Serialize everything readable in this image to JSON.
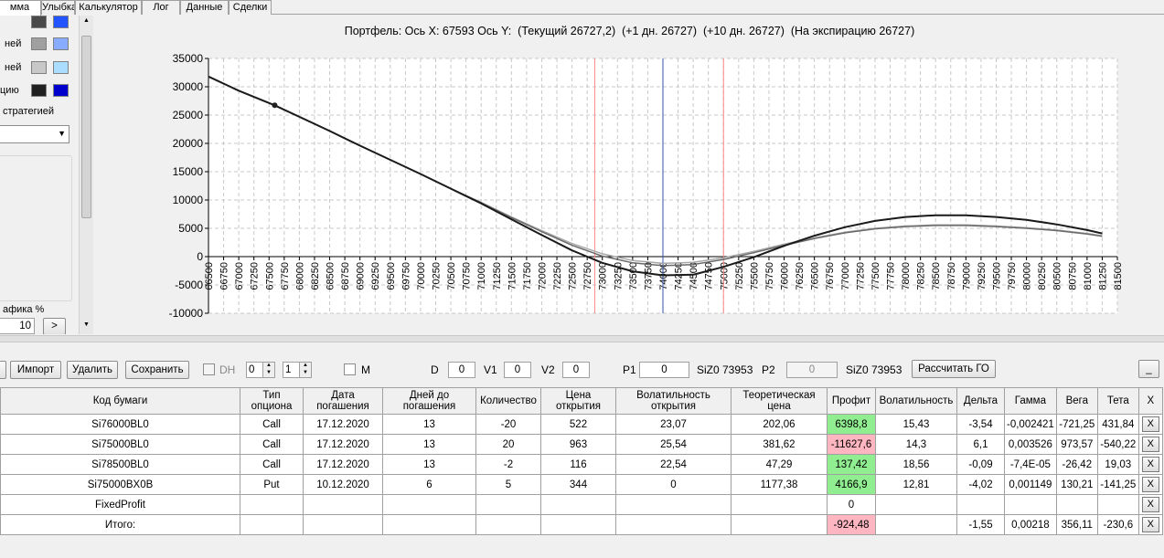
{
  "tabs": [
    {
      "label": "мма",
      "active": true
    },
    {
      "label": "Улыбка"
    },
    {
      "label": "Калькулятор"
    },
    {
      "label": "Лог"
    },
    {
      "label": "Данные"
    },
    {
      "label": "Сделки"
    }
  ],
  "left_panel": {
    "rows": [
      {
        "label": "",
        "swatch_a": "#4a4a4a",
        "swatch_b": "#2255ff"
      },
      {
        "label": "ней",
        "swatch_a": "#a0a0a0",
        "swatch_b": "#88aaff"
      },
      {
        "label": "ней",
        "swatch_a": "#c8c8c8",
        "swatch_b": "#aaddff"
      },
      {
        "label": "цию",
        "swatch_a": "#202020",
        "swatch_b": "#0000cc"
      }
    ],
    "strategy_label": "стратегией",
    "dropdown_value": "",
    "section_label": "афика %",
    "number_value": "10",
    "number_button": ">"
  },
  "chart_title": "Портфель: Ось X: 67593 Ось Y:  (Текущий 26727,2)  (+1 дн. 26727)  (+10 дн. 26727)  (На экспирацию 26727)",
  "chart_data": {
    "type": "line",
    "title": "Портфель: Ось X: 67593 Ось Y:  (Текущий 26727,2)  (+1 дн. 26727)  (+10 дн. 26727)  (На экспирацию 26727)",
    "xlim": [
      66500,
      81500
    ],
    "ylim": [
      -10000,
      35000
    ],
    "x_tick_step": 250,
    "y_ticks": [
      35000,
      30000,
      25000,
      20000,
      15000,
      10000,
      5000,
      0,
      -5000,
      -10000
    ],
    "grid": true,
    "marker": {
      "x": 67593,
      "y": 26727
    },
    "vlines": [
      {
        "x": 72875,
        "color": "#ff8888"
      },
      {
        "x": 74000,
        "color": "#3355aa"
      },
      {
        "x": 75000,
        "color": "#ff8888"
      }
    ],
    "series": [
      {
        "color": "#a8a8a8",
        "width": 1.5,
        "x": [
          66500,
          67000,
          67593,
          68000,
          68500,
          69000,
          69500,
          70000,
          70500,
          71000,
          71500,
          72000,
          72500,
          73000,
          73500,
          74000,
          74500,
          75000,
          75500,
          76000,
          76500,
          77000,
          77500,
          78000,
          78500,
          79000,
          79500,
          80000,
          80500,
          81000,
          81250
        ],
        "y": [
          31800,
          29300,
          26727,
          24700,
          22200,
          19600,
          17100,
          14600,
          12000,
          9600,
          7000,
          4600,
          2300,
          500,
          -700,
          -1200,
          -1000,
          -200,
          900,
          2200,
          3300,
          4300,
          5000,
          5400,
          5600,
          5600,
          5400,
          5100,
          4700,
          4100,
          3700
        ]
      },
      {
        "color": "#6a6a6a",
        "width": 1.5,
        "x": [
          66500,
          67000,
          67593,
          68000,
          68500,
          69000,
          69500,
          70000,
          70500,
          71000,
          71500,
          72000,
          72500,
          73000,
          73500,
          74000,
          74500,
          75000,
          75500,
          76000,
          76500,
          77000,
          77500,
          78000,
          78500,
          79000,
          79500,
          80000,
          80500,
          81000,
          81250
        ],
        "y": [
          31800,
          29300,
          26727,
          24700,
          22200,
          19600,
          17100,
          14600,
          12000,
          9500,
          6900,
          4400,
          2000,
          100,
          -1100,
          -1600,
          -1400,
          -500,
          700,
          2000,
          3200,
          4200,
          4900,
          5300,
          5500,
          5500,
          5300,
          5000,
          4600,
          4000,
          3600
        ]
      },
      {
        "color": "#1a1a1a",
        "width": 2,
        "x": [
          66500,
          67000,
          67593,
          68000,
          68500,
          69000,
          69500,
          70000,
          70500,
          71000,
          71500,
          72000,
          72500,
          73000,
          73500,
          74000,
          74500,
          75000,
          75500,
          76000,
          76500,
          77000,
          77500,
          78000,
          78500,
          79000,
          79500,
          80000,
          80500,
          81000,
          81250
        ],
        "y": [
          31800,
          29300,
          26727,
          24700,
          22200,
          19600,
          17100,
          14600,
          12000,
          9400,
          6600,
          3800,
          1100,
          -1100,
          -2600,
          -3300,
          -3200,
          -1800,
          -100,
          1900,
          3700,
          5200,
          6300,
          7000,
          7300,
          7300,
          7000,
          6500,
          5700,
          4700,
          4100
        ]
      }
    ]
  },
  "toolbar": {
    "import": "Импорт",
    "delete": "Удалить",
    "save": "Сохранить",
    "dh_label": "DH",
    "spin1": "0",
    "spin2": "1",
    "m_label": "M",
    "d_label": "D",
    "d_value": "0",
    "v1_label": "V1",
    "v1_value": "0",
    "v2_label": "V2",
    "v2_value": "0",
    "p1_label": "P1",
    "p1_value": "0",
    "p1_suffix": "SiZ0 73953",
    "p2_label": "P2",
    "p2_value": "0",
    "p2_suffix": "SiZ0 73953",
    "calc_go": "Рассчитать ГО",
    "minimize": "_"
  },
  "table": {
    "headers": [
      "Код бумаги",
      "Тип опциона",
      "Дата погашения",
      "Дней до погашения",
      "Количество",
      "Цена открытия",
      "Волатильность открытия",
      "Теоретическая цена",
      "Профит",
      "Волатильность",
      "Дельта",
      "Гамма",
      "Вега",
      "Тета",
      "X"
    ],
    "rows": [
      [
        "Si76000BL0",
        "Call",
        "17.12.2020",
        "13",
        "-20",
        "522",
        "23,07",
        "202,06",
        "6398,8",
        "15,43",
        "-3,54",
        "-0,002421",
        "-721,25",
        "431,84"
      ],
      [
        "Si75000BL0",
        "Call",
        "17.12.2020",
        "13",
        "20",
        "963",
        "25,54",
        "381,62",
        "-11627,6",
        "14,3",
        "6,1",
        "0,003526",
        "973,57",
        "-540,22"
      ],
      [
        "Si78500BL0",
        "Call",
        "17.12.2020",
        "13",
        "-2",
        "116",
        "22,54",
        "47,29",
        "137,42",
        "18,56",
        "-0,09",
        "-7,4E-05",
        "-26,42",
        "19,03"
      ],
      [
        "Si75000BX0B",
        "Put",
        "10.12.2020",
        "6",
        "5",
        "344",
        "0",
        "1177,38",
        "4166,9",
        "12,81",
        "-4,02",
        "0,001149",
        "130,21",
        "-141,25"
      ],
      [
        "FixedProfit",
        "",
        "",
        "",
        "",
        "",
        "",
        "",
        "0",
        "",
        "",
        "",
        "",
        ""
      ],
      [
        "Итого:",
        "",
        "",
        "",
        "",
        "",
        "",
        "",
        "-924,48",
        "",
        "-1,55",
        "0,00218",
        "356,11",
        "-230,6"
      ]
    ],
    "profit_status": [
      "pos",
      "neg",
      "pos",
      "pos",
      "",
      "neg"
    ],
    "x_label": "X"
  }
}
